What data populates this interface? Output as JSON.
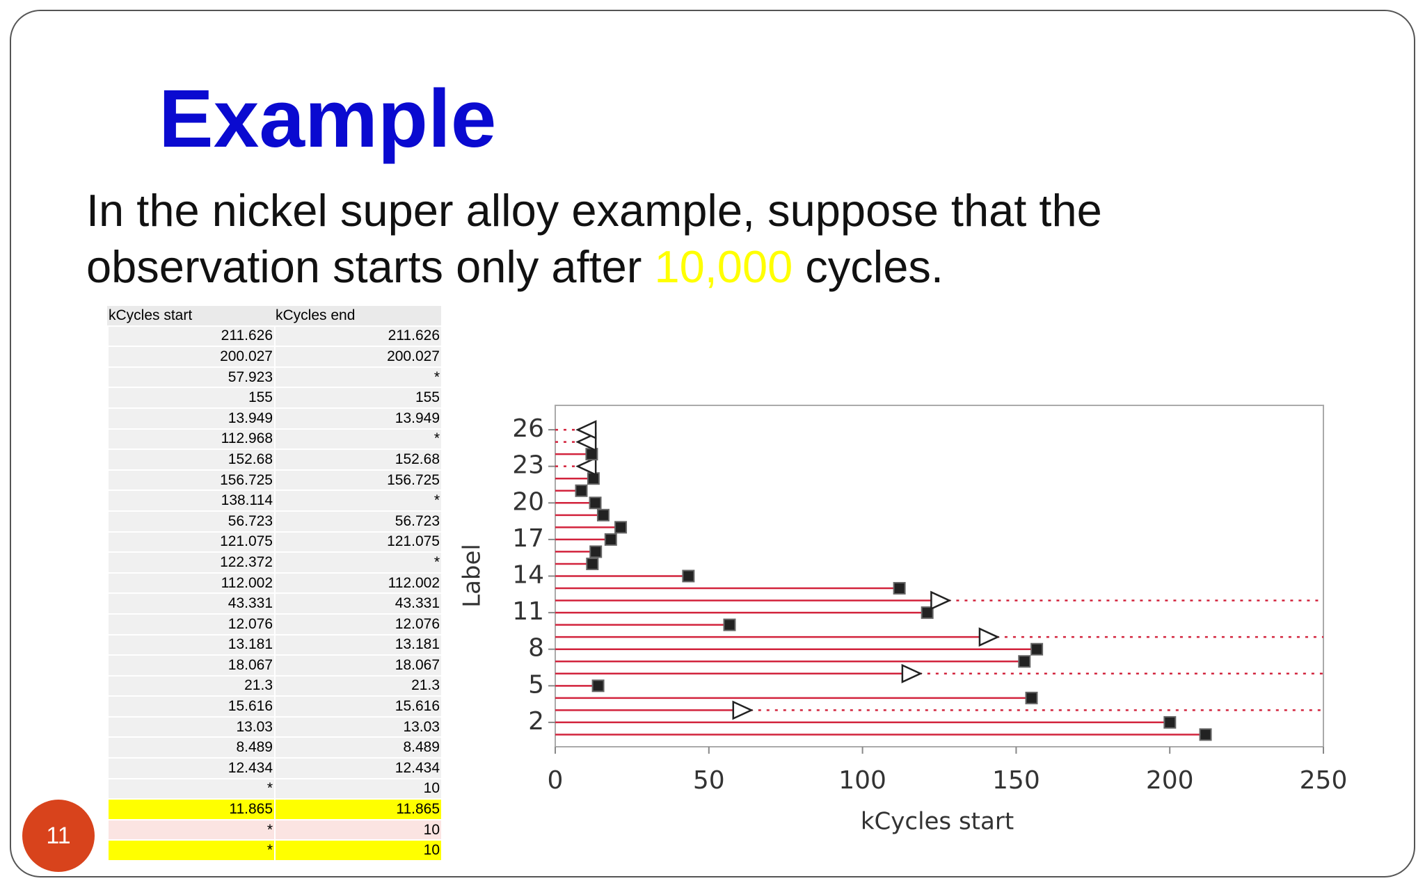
{
  "slide": {
    "title": "Example",
    "body_line_1": "In the nickel super alloy example, suppose that the",
    "body_line_2_before": "observation starts only after",
    "body_highlight": "10,000",
    "body_line_2_after": "cycles.",
    "page_number": "11",
    "table": {
      "header": [
        "kCycles start",
        "kCycles end"
      ],
      "rows": [
        [
          "211.626",
          "211.626"
        ],
        [
          "200.027",
          "200.027"
        ],
        [
          "57.923",
          "*"
        ],
        [
          "155",
          "155"
        ],
        [
          "13.949",
          "13.949"
        ],
        [
          "112.968",
          "*"
        ],
        [
          "152.68",
          "152.68"
        ],
        [
          "156.725",
          "156.725"
        ],
        [
          "138.114",
          "*"
        ],
        [
          "56.723",
          "56.723"
        ],
        [
          "121.075",
          "121.075"
        ],
        [
          "122.372",
          "*"
        ],
        [
          "112.002",
          "112.002"
        ],
        [
          "43.331",
          "43.331"
        ],
        [
          "12.076",
          "12.076"
        ],
        [
          "13.181",
          "13.181"
        ],
        [
          "18.067",
          "18.067"
        ],
        [
          "21.3",
          "21.3"
        ],
        [
          "15.616",
          "15.616"
        ],
        [
          "13.03",
          "13.03"
        ],
        [
          "8.489",
          "8.489"
        ],
        [
          "12.434",
          "12.434"
        ],
        [
          "*",
          "10"
        ],
        [
          "11.865",
          "11.865"
        ],
        [
          "*",
          "10"
        ],
        [
          "*",
          "10"
        ]
      ]
    }
  },
  "chart_data": {
    "type": "interval",
    "x_label": "kCycles start",
    "y_label": "Label",
    "y": [
      1,
      2,
      3,
      4,
      5,
      6,
      7,
      8,
      9,
      10,
      11,
      12,
      13,
      14,
      15,
      16,
      17,
      18,
      19,
      20,
      21,
      22,
      23,
      24,
      25,
      26
    ],
    "start": [
      211.626,
      200.027,
      57.923,
      155,
      13.949,
      112.968,
      152.68,
      156.725,
      138.114,
      56.723,
      121.075,
      122.372,
      112.002,
      43.331,
      12.076,
      13.181,
      18.067,
      21.3,
      15.616,
      13.03,
      8.489,
      12.434,
      null,
      11.865,
      null,
      null
    ],
    "end": [
      211.626,
      200.027,
      null,
      155,
      13.949,
      null,
      152.68,
      156.725,
      null,
      56.723,
      121.075,
      null,
      112.002,
      43.331,
      12.076,
      13.181,
      18.067,
      21.3,
      15.616,
      13.03,
      8.489,
      12.434,
      10,
      11.865,
      10,
      10
    ],
    "color": "#d2233c",
    "xlim": [
      0,
      250
    ],
    "xticks": [
      0,
      50,
      100,
      150,
      200,
      250
    ],
    "ylim": [
      0,
      28
    ],
    "yticks": [
      2,
      5,
      8,
      11,
      14,
      17,
      20,
      23,
      26
    ]
  }
}
